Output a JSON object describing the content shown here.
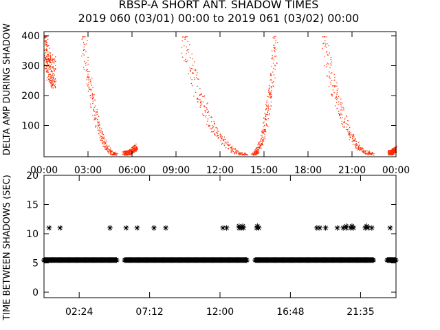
{
  "title": "RBSP-A SHORT ANT. SHADOW TIMES",
  "subtitle": "2019 060 (03/01) 00:00 to 2019 061 (03/02) 00:00",
  "colors": {
    "points": "#ff2a00",
    "axes": "#000000",
    "background": "#ffffff"
  },
  "chart_data": [
    {
      "type": "scatter",
      "ylabel": "DELTA AMP DURING SHADOW",
      "ylim": [
        0,
        400
      ],
      "yticks": [
        100,
        200,
        300,
        400
      ],
      "ytick_labels": [
        "100",
        "200",
        "300",
        "400"
      ],
      "xlim_hours": [
        0,
        24
      ],
      "xticks_hours": [
        0,
        3,
        6,
        9,
        12,
        15,
        18,
        21,
        24
      ],
      "xtick_labels": [
        "00:00",
        "03:00",
        "06:00",
        "09:00",
        "12:00",
        "15:00",
        "18:00",
        "21:00",
        "00:00"
      ],
      "grid": false,
      "arcs": [
        {
          "x_start_hour": 0.0,
          "x_end_hour": 0.7,
          "y_start": 380,
          "y_end": 280
        },
        {
          "x_start_hour": 2.6,
          "x_end_hour": 4.9,
          "y_start": 400,
          "y_end": 5
        },
        {
          "x_start_hour": 5.4,
          "x_end_hour": 6.3,
          "y_start": 8,
          "y_end": 30
        },
        {
          "x_start_hour": 9.4,
          "x_end_hour": 13.8,
          "y_start": 400,
          "y_end": 5
        },
        {
          "x_start_hour": 14.2,
          "x_end_hour": 15.8,
          "y_start": 5,
          "y_end": 400
        },
        {
          "x_start_hour": 19.0,
          "x_end_hour": 22.4,
          "y_start": 400,
          "y_end": 5
        },
        {
          "x_start_hour": 23.5,
          "x_end_hour": 24.0,
          "y_start": 10,
          "y_end": 25
        }
      ]
    },
    {
      "type": "scatter",
      "ylabel": "TIME BETWEEN SHADOWS (SEC)",
      "ylim": [
        0,
        20
      ],
      "yticks": [
        0,
        5,
        10,
        15,
        20
      ],
      "ytick_labels": [
        "0",
        "5",
        "10",
        "15",
        "20"
      ],
      "xlim_hours": [
        0,
        24
      ],
      "xticks_hours": [
        2.4,
        7.2,
        12.0,
        16.8,
        21.5833
      ],
      "xtick_labels": [
        "02:24",
        "07:12",
        "12:00",
        "16:48",
        "21:35"
      ],
      "marker": "asterisk",
      "grid": false,
      "main_band": {
        "y": 5.5,
        "segments_hours": [
          [
            0.0,
            4.95
          ],
          [
            5.5,
            13.85
          ],
          [
            14.4,
            22.5
          ],
          [
            23.4,
            24.0
          ]
        ]
      },
      "points": [
        {
          "x": 0.35,
          "y": 11
        },
        {
          "x": 1.1,
          "y": 11
        },
        {
          "x": 4.5,
          "y": 11
        },
        {
          "x": 5.6,
          "y": 11
        },
        {
          "x": 6.35,
          "y": 11
        },
        {
          "x": 7.5,
          "y": 11
        },
        {
          "x": 8.3,
          "y": 11
        },
        {
          "x": 12.2,
          "y": 11
        },
        {
          "x": 12.45,
          "y": 11
        },
        {
          "x": 13.3,
          "y": 11
        },
        {
          "x": 13.45,
          "y": 11
        },
        {
          "x": 13.6,
          "y": 11
        },
        {
          "x": 14.5,
          "y": 11
        },
        {
          "x": 14.65,
          "y": 11
        },
        {
          "x": 18.6,
          "y": 11
        },
        {
          "x": 18.8,
          "y": 11
        },
        {
          "x": 19.2,
          "y": 11
        },
        {
          "x": 20.0,
          "y": 11
        },
        {
          "x": 20.4,
          "y": 11
        },
        {
          "x": 20.6,
          "y": 11
        },
        {
          "x": 20.9,
          "y": 11
        },
        {
          "x": 21.1,
          "y": 11
        },
        {
          "x": 21.9,
          "y": 11
        },
        {
          "x": 22.1,
          "y": 11
        },
        {
          "x": 22.35,
          "y": 11
        },
        {
          "x": 23.6,
          "y": 11
        },
        {
          "x": 13.3,
          "y": 11.3
        },
        {
          "x": 13.55,
          "y": 11.3
        },
        {
          "x": 14.55,
          "y": 11.3
        },
        {
          "x": 20.6,
          "y": 11.3
        },
        {
          "x": 21.0,
          "y": 11.3
        },
        {
          "x": 22.0,
          "y": 11.3
        }
      ]
    }
  ]
}
